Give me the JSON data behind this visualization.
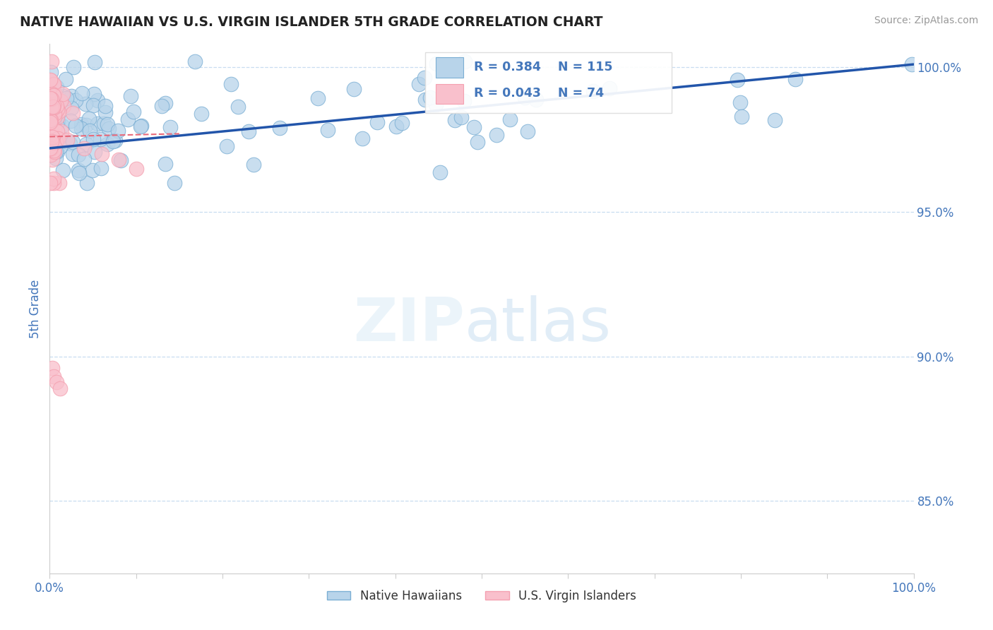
{
  "title": "NATIVE HAWAIIAN VS U.S. VIRGIN ISLANDER 5TH GRADE CORRELATION CHART",
  "source": "Source: ZipAtlas.com",
  "ylabel": "5th Grade",
  "xlim": [
    0.0,
    1.0
  ],
  "ylim": [
    0.825,
    1.008
  ],
  "blue_color": "#7bafd4",
  "pink_color": "#f4a0b0",
  "blue_fill": "#b8d4ea",
  "pink_fill": "#f9c0cc",
  "trend_blue": "#2255aa",
  "trend_pink": "#e8697a",
  "legend_R_blue": "R = 0.384",
  "legend_N_blue": "N = 115",
  "legend_R_pink": "R = 0.043",
  "legend_N_pink": "N = 74",
  "grid_color": "#c8ddf0",
  "spine_color": "#cccccc",
  "tick_color": "#4477bb",
  "label_color": "#4477bb",
  "title_color": "#222222",
  "source_color": "#999999",
  "yticks": [
    1.0,
    0.95,
    0.9,
    0.85
  ],
  "ytick_labels": [
    "100.0%",
    "95.0%",
    "90.0%",
    "85.0%"
  ],
  "blue_trend_x0": 0.0,
  "blue_trend_y0": 0.972,
  "blue_trend_x1": 1.0,
  "blue_trend_y1": 1.001,
  "pink_trend_x0": 0.0,
  "pink_trend_y0": 0.976,
  "pink_trend_x1": 0.15,
  "pink_trend_y1": 0.977
}
